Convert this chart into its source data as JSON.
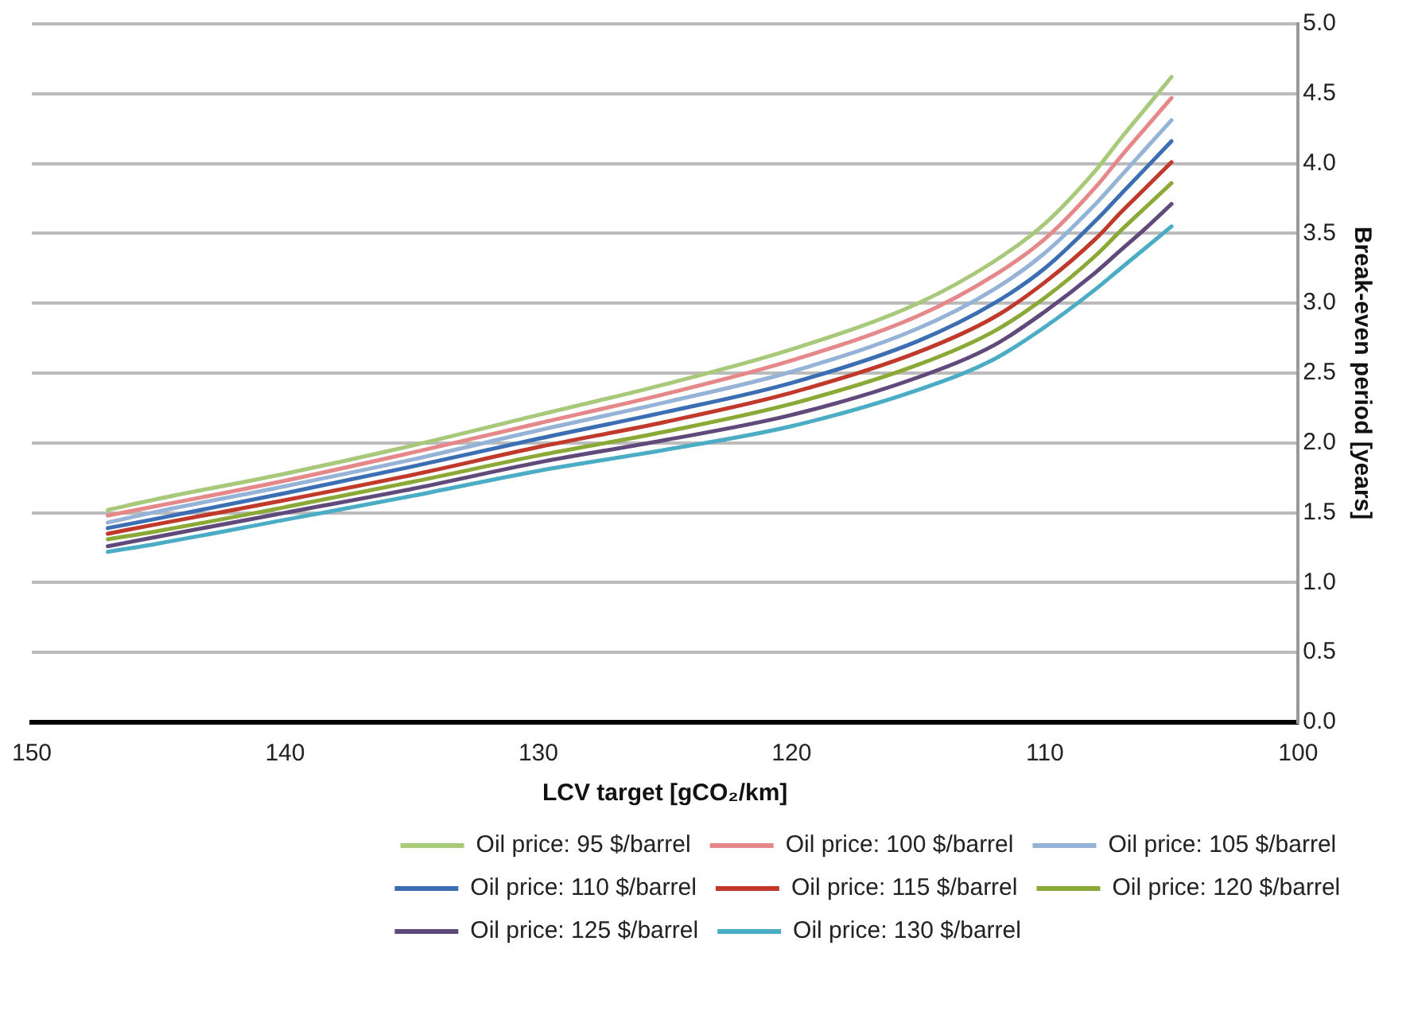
{
  "chart_data": {
    "type": "line",
    "xlabel": "LCV target [gCO₂/km]",
    "ylabel": "Break-even period [years]",
    "x": [
      147,
      145,
      140,
      135,
      130,
      125,
      120,
      115,
      112,
      110,
      108,
      107,
      106,
      105
    ],
    "xlim": [
      150,
      100
    ],
    "xticks": [
      150,
      140,
      130,
      120,
      110,
      100
    ],
    "ylim": [
      0,
      5
    ],
    "yticks": [
      {
        "value": 0,
        "label": "0.0"
      },
      0.5,
      {
        "value": 1,
        "label": "1.0"
      },
      1.5,
      {
        "value": 2,
        "label": "2.0"
      },
      2.5,
      {
        "value": 3,
        "label": "3.0"
      },
      3.5,
      {
        "value": 4,
        "label": "4.0"
      },
      4.5,
      {
        "value": 5,
        "label": "5.0"
      }
    ],
    "grid": "y",
    "legend": "bottom",
    "marker": "none",
    "line_style": "solid",
    "series": [
      {
        "name": "Oil price: 95 $/barrel",
        "color": "#a9c97a",
        "values": [
          1.52,
          1.6,
          1.78,
          1.98,
          2.2,
          2.42,
          2.67,
          3.0,
          3.3,
          3.57,
          3.95,
          4.18,
          4.4,
          4.62
        ]
      },
      {
        "name": "Oil price: 100 $/barrel",
        "color": "#e6888a",
        "values": [
          1.48,
          1.55,
          1.73,
          1.93,
          2.14,
          2.35,
          2.59,
          2.91,
          3.2,
          3.46,
          3.83,
          4.05,
          4.26,
          4.47
        ]
      },
      {
        "name": "Oil price: 105 $/barrel",
        "color": "#95b3d7",
        "values": [
          1.43,
          1.51,
          1.69,
          1.88,
          2.09,
          2.29,
          2.51,
          2.82,
          3.1,
          3.36,
          3.71,
          3.91,
          4.11,
          4.31
        ]
      },
      {
        "name": "Oil price: 110 $/barrel",
        "color": "#3c6eb4",
        "values": [
          1.39,
          1.46,
          1.64,
          1.83,
          2.03,
          2.22,
          2.43,
          2.73,
          3.0,
          3.25,
          3.59,
          3.78,
          3.97,
          4.16
        ]
      },
      {
        "name": "Oil price: 115 $/barrel",
        "color": "#c0392b",
        "values": [
          1.35,
          1.42,
          1.59,
          1.77,
          1.97,
          2.15,
          2.36,
          2.65,
          2.9,
          3.15,
          3.46,
          3.65,
          3.83,
          4.01
        ]
      },
      {
        "name": "Oil price: 120 $/barrel",
        "color": "#8aa936",
        "values": [
          1.31,
          1.37,
          1.54,
          1.72,
          1.91,
          2.08,
          2.28,
          2.56,
          2.8,
          3.04,
          3.34,
          3.52,
          3.69,
          3.86
        ]
      },
      {
        "name": "Oil price: 125 $/barrel",
        "color": "#604a7b",
        "values": [
          1.26,
          1.33,
          1.5,
          1.67,
          1.86,
          2.02,
          2.2,
          2.47,
          2.7,
          2.94,
          3.22,
          3.38,
          3.54,
          3.71
        ]
      },
      {
        "name": "Oil price: 130 $/barrel",
        "color": "#4bacc6",
        "values": [
          1.22,
          1.28,
          1.45,
          1.62,
          1.8,
          1.95,
          2.12,
          2.38,
          2.6,
          2.83,
          3.1,
          3.25,
          3.4,
          3.55
        ]
      }
    ]
  }
}
